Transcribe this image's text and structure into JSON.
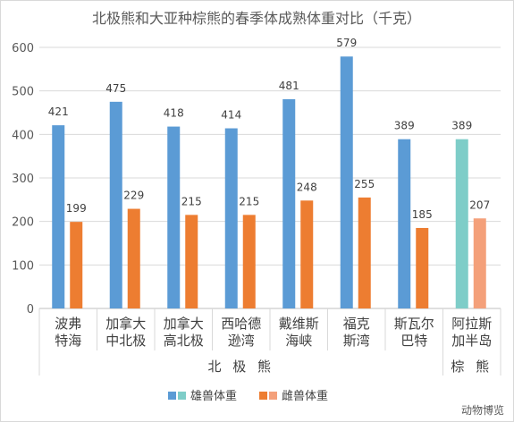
{
  "chart_data": {
    "type": "bar",
    "title": "北极熊和大亚种棕熊的春季体成熟体重对比（千克）",
    "categories": [
      [
        "波弗",
        "特海"
      ],
      [
        "加拿大",
        "中北极"
      ],
      [
        "加拿大",
        "高北极"
      ],
      [
        "西哈德",
        "逊湾"
      ],
      [
        "戴维斯",
        "海峡"
      ],
      [
        "福克",
        "斯湾"
      ],
      [
        "斯瓦尔",
        "巴特"
      ],
      [
        "阿拉斯",
        "加半岛"
      ]
    ],
    "groups": [
      {
        "label": "北 极 熊",
        "from": 0,
        "to": 6
      },
      {
        "label": "棕 熊",
        "from": 7,
        "to": 7
      }
    ],
    "series": [
      {
        "name": "雄兽体重",
        "values": [
          421,
          475,
          418,
          414,
          481,
          579,
          389,
          389
        ]
      },
      {
        "name": "雌兽体重",
        "values": [
          199,
          229,
          215,
          215,
          248,
          255,
          185,
          207
        ]
      }
    ],
    "ylim": [
      0,
      600
    ],
    "yticks": [
      0,
      100,
      200,
      300,
      400,
      500,
      600
    ],
    "grid": true,
    "legend": "bottom",
    "colors": {
      "male_polar": "#5b9bd5",
      "female_polar": "#ed7d31",
      "male_brown": "#7ecdc8",
      "female_brown": "#f4a07a",
      "grid": "#d9d9d9"
    }
  },
  "watermark": "动物博览"
}
